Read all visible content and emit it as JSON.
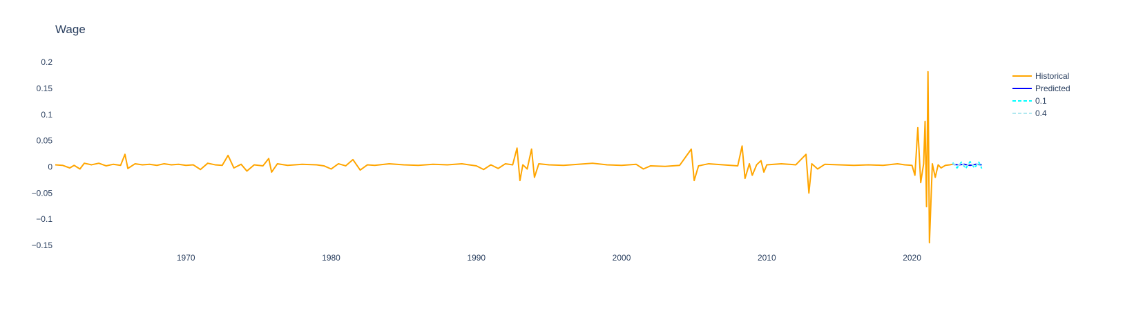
{
  "chart_data": {
    "type": "line",
    "title": "Wage",
    "xlabel": "",
    "ylabel": "",
    "xlim": [
      1961.0,
      2025.3
    ],
    "ylim": [
      -0.15,
      0.22
    ],
    "x_ticks": [
      "1970",
      "1980",
      "1990",
      "2000",
      "2010",
      "2020"
    ],
    "y_ticks": [
      "0.2",
      "0.15",
      "0.1",
      "0.05",
      "0",
      "−0.05",
      "−0.1",
      "−0.15"
    ],
    "y_tick_values": [
      0.2,
      0.15,
      0.1,
      0.05,
      0,
      -0.05,
      -0.1,
      -0.15
    ],
    "legend_position": "top-right",
    "grid": false,
    "series": [
      {
        "name": "Historical",
        "color": "#ffa500",
        "dash": "solid",
        "points": [
          [
            1961.0,
            0.004
          ],
          [
            1961.5,
            0.003
          ],
          [
            1962.0,
            -0.002
          ],
          [
            1962.3,
            0.003
          ],
          [
            1962.7,
            -0.004
          ],
          [
            1963.0,
            0.007
          ],
          [
            1963.5,
            0.004
          ],
          [
            1964.0,
            0.007
          ],
          [
            1964.5,
            0.002
          ],
          [
            1965.0,
            0.005
          ],
          [
            1965.5,
            0.003
          ],
          [
            1965.8,
            0.024
          ],
          [
            1966.0,
            -0.003
          ],
          [
            1966.5,
            0.006
          ],
          [
            1967.0,
            0.004
          ],
          [
            1967.5,
            0.005
          ],
          [
            1968.0,
            0.003
          ],
          [
            1968.5,
            0.006
          ],
          [
            1969.0,
            0.004
          ],
          [
            1969.5,
            0.005
          ],
          [
            1970.0,
            0.003
          ],
          [
            1970.5,
            0.004
          ],
          [
            1971.0,
            -0.005
          ],
          [
            1971.5,
            0.007
          ],
          [
            1972.0,
            0.004
          ],
          [
            1972.5,
            0.003
          ],
          [
            1972.9,
            0.022
          ],
          [
            1973.3,
            -0.002
          ],
          [
            1973.8,
            0.005
          ],
          [
            1974.2,
            -0.008
          ],
          [
            1974.7,
            0.004
          ],
          [
            1975.3,
            0.002
          ],
          [
            1975.7,
            0.016
          ],
          [
            1975.9,
            -0.01
          ],
          [
            1976.3,
            0.006
          ],
          [
            1977.0,
            0.003
          ],
          [
            1978.0,
            0.005
          ],
          [
            1979.0,
            0.004
          ],
          [
            1979.5,
            0.002
          ],
          [
            1980.0,
            -0.004
          ],
          [
            1980.5,
            0.006
          ],
          [
            1981.0,
            0.002
          ],
          [
            1981.5,
            0.014
          ],
          [
            1982.0,
            -0.006
          ],
          [
            1982.5,
            0.004
          ],
          [
            1983.0,
            0.003
          ],
          [
            1984.0,
            0.006
          ],
          [
            1985.0,
            0.004
          ],
          [
            1986.0,
            0.003
          ],
          [
            1987.0,
            0.005
          ],
          [
            1988.0,
            0.004
          ],
          [
            1989.0,
            0.006
          ],
          [
            1990.0,
            0.002
          ],
          [
            1990.5,
            -0.005
          ],
          [
            1991.0,
            0.004
          ],
          [
            1991.5,
            -0.003
          ],
          [
            1992.0,
            0.006
          ],
          [
            1992.5,
            0.004
          ],
          [
            1992.8,
            0.036
          ],
          [
            1993.0,
            -0.026
          ],
          [
            1993.2,
            0.004
          ],
          [
            1993.5,
            -0.004
          ],
          [
            1993.8,
            0.034
          ],
          [
            1994.0,
            -0.02
          ],
          [
            1994.3,
            0.006
          ],
          [
            1995.0,
            0.004
          ],
          [
            1996.0,
            0.003
          ],
          [
            1997.0,
            0.005
          ],
          [
            1998.0,
            0.007
          ],
          [
            1999.0,
            0.004
          ],
          [
            2000.0,
            0.003
          ],
          [
            2001.0,
            0.005
          ],
          [
            2001.5,
            -0.004
          ],
          [
            2002.0,
            0.002
          ],
          [
            2003.0,
            0.001
          ],
          [
            2004.0,
            0.003
          ],
          [
            2004.8,
            0.034
          ],
          [
            2005.0,
            -0.026
          ],
          [
            2005.3,
            0.002
          ],
          [
            2006.0,
            0.006
          ],
          [
            2007.0,
            0.004
          ],
          [
            2008.0,
            0.002
          ],
          [
            2008.3,
            0.04
          ],
          [
            2008.5,
            -0.022
          ],
          [
            2008.8,
            0.006
          ],
          [
            2009.0,
            -0.016
          ],
          [
            2009.3,
            0.004
          ],
          [
            2009.6,
            0.012
          ],
          [
            2009.8,
            -0.01
          ],
          [
            2010.0,
            0.004
          ],
          [
            2011.0,
            0.006
          ],
          [
            2012.0,
            0.004
          ],
          [
            2012.7,
            0.024
          ],
          [
            2012.9,
            -0.05
          ],
          [
            2013.1,
            0.006
          ],
          [
            2013.5,
            -0.004
          ],
          [
            2014.0,
            0.005
          ],
          [
            2015.0,
            0.004
          ],
          [
            2016.0,
            0.003
          ],
          [
            2017.0,
            0.004
          ],
          [
            2018.0,
            0.003
          ],
          [
            2019.0,
            0.006
          ],
          [
            2019.5,
            0.004
          ],
          [
            2020.0,
            0.003
          ],
          [
            2020.2,
            -0.016
          ],
          [
            2020.4,
            0.075
          ],
          [
            2020.6,
            -0.03
          ],
          [
            2020.8,
            0.006
          ],
          [
            2020.9,
            0.087
          ],
          [
            2021.0,
            -0.076
          ],
          [
            2021.1,
            0.182
          ],
          [
            2021.2,
            -0.145
          ],
          [
            2021.4,
            0.006
          ],
          [
            2021.6,
            -0.02
          ],
          [
            2021.8,
            0.004
          ],
          [
            2022.0,
            -0.002
          ],
          [
            2022.3,
            0.003
          ],
          [
            2022.6,
            0.004
          ],
          [
            2022.8,
            0.005
          ]
        ]
      },
      {
        "name": "Predicted",
        "color": "#0000ff",
        "dash": "solid",
        "points": [
          [
            2022.8,
            0.005
          ],
          [
            2023.2,
            0.004
          ],
          [
            2023.6,
            0.005
          ],
          [
            2024.0,
            0.003
          ],
          [
            2024.4,
            0.005
          ],
          [
            2024.8,
            0.004
          ]
        ]
      },
      {
        "name": "0.1",
        "color": "#00ffff",
        "dash": "dash",
        "points": [
          [
            2022.8,
            0.008
          ],
          [
            2023.1,
            -0.002
          ],
          [
            2023.4,
            0.009
          ],
          [
            2023.7,
            -0.003
          ],
          [
            2024.0,
            0.01
          ],
          [
            2024.3,
            -0.002
          ],
          [
            2024.6,
            0.009
          ],
          [
            2024.8,
            -0.003
          ]
        ]
      },
      {
        "name": "0.4",
        "color": "#b0e8f0",
        "dash": "dash",
        "points": [
          [
            2022.8,
            0.006
          ],
          [
            2023.1,
            0.002
          ],
          [
            2023.4,
            0.007
          ],
          [
            2023.7,
            0.001
          ],
          [
            2024.0,
            0.007
          ],
          [
            2024.3,
            0.002
          ],
          [
            2024.6,
            0.006
          ],
          [
            2024.8,
            0.001
          ]
        ]
      }
    ]
  }
}
